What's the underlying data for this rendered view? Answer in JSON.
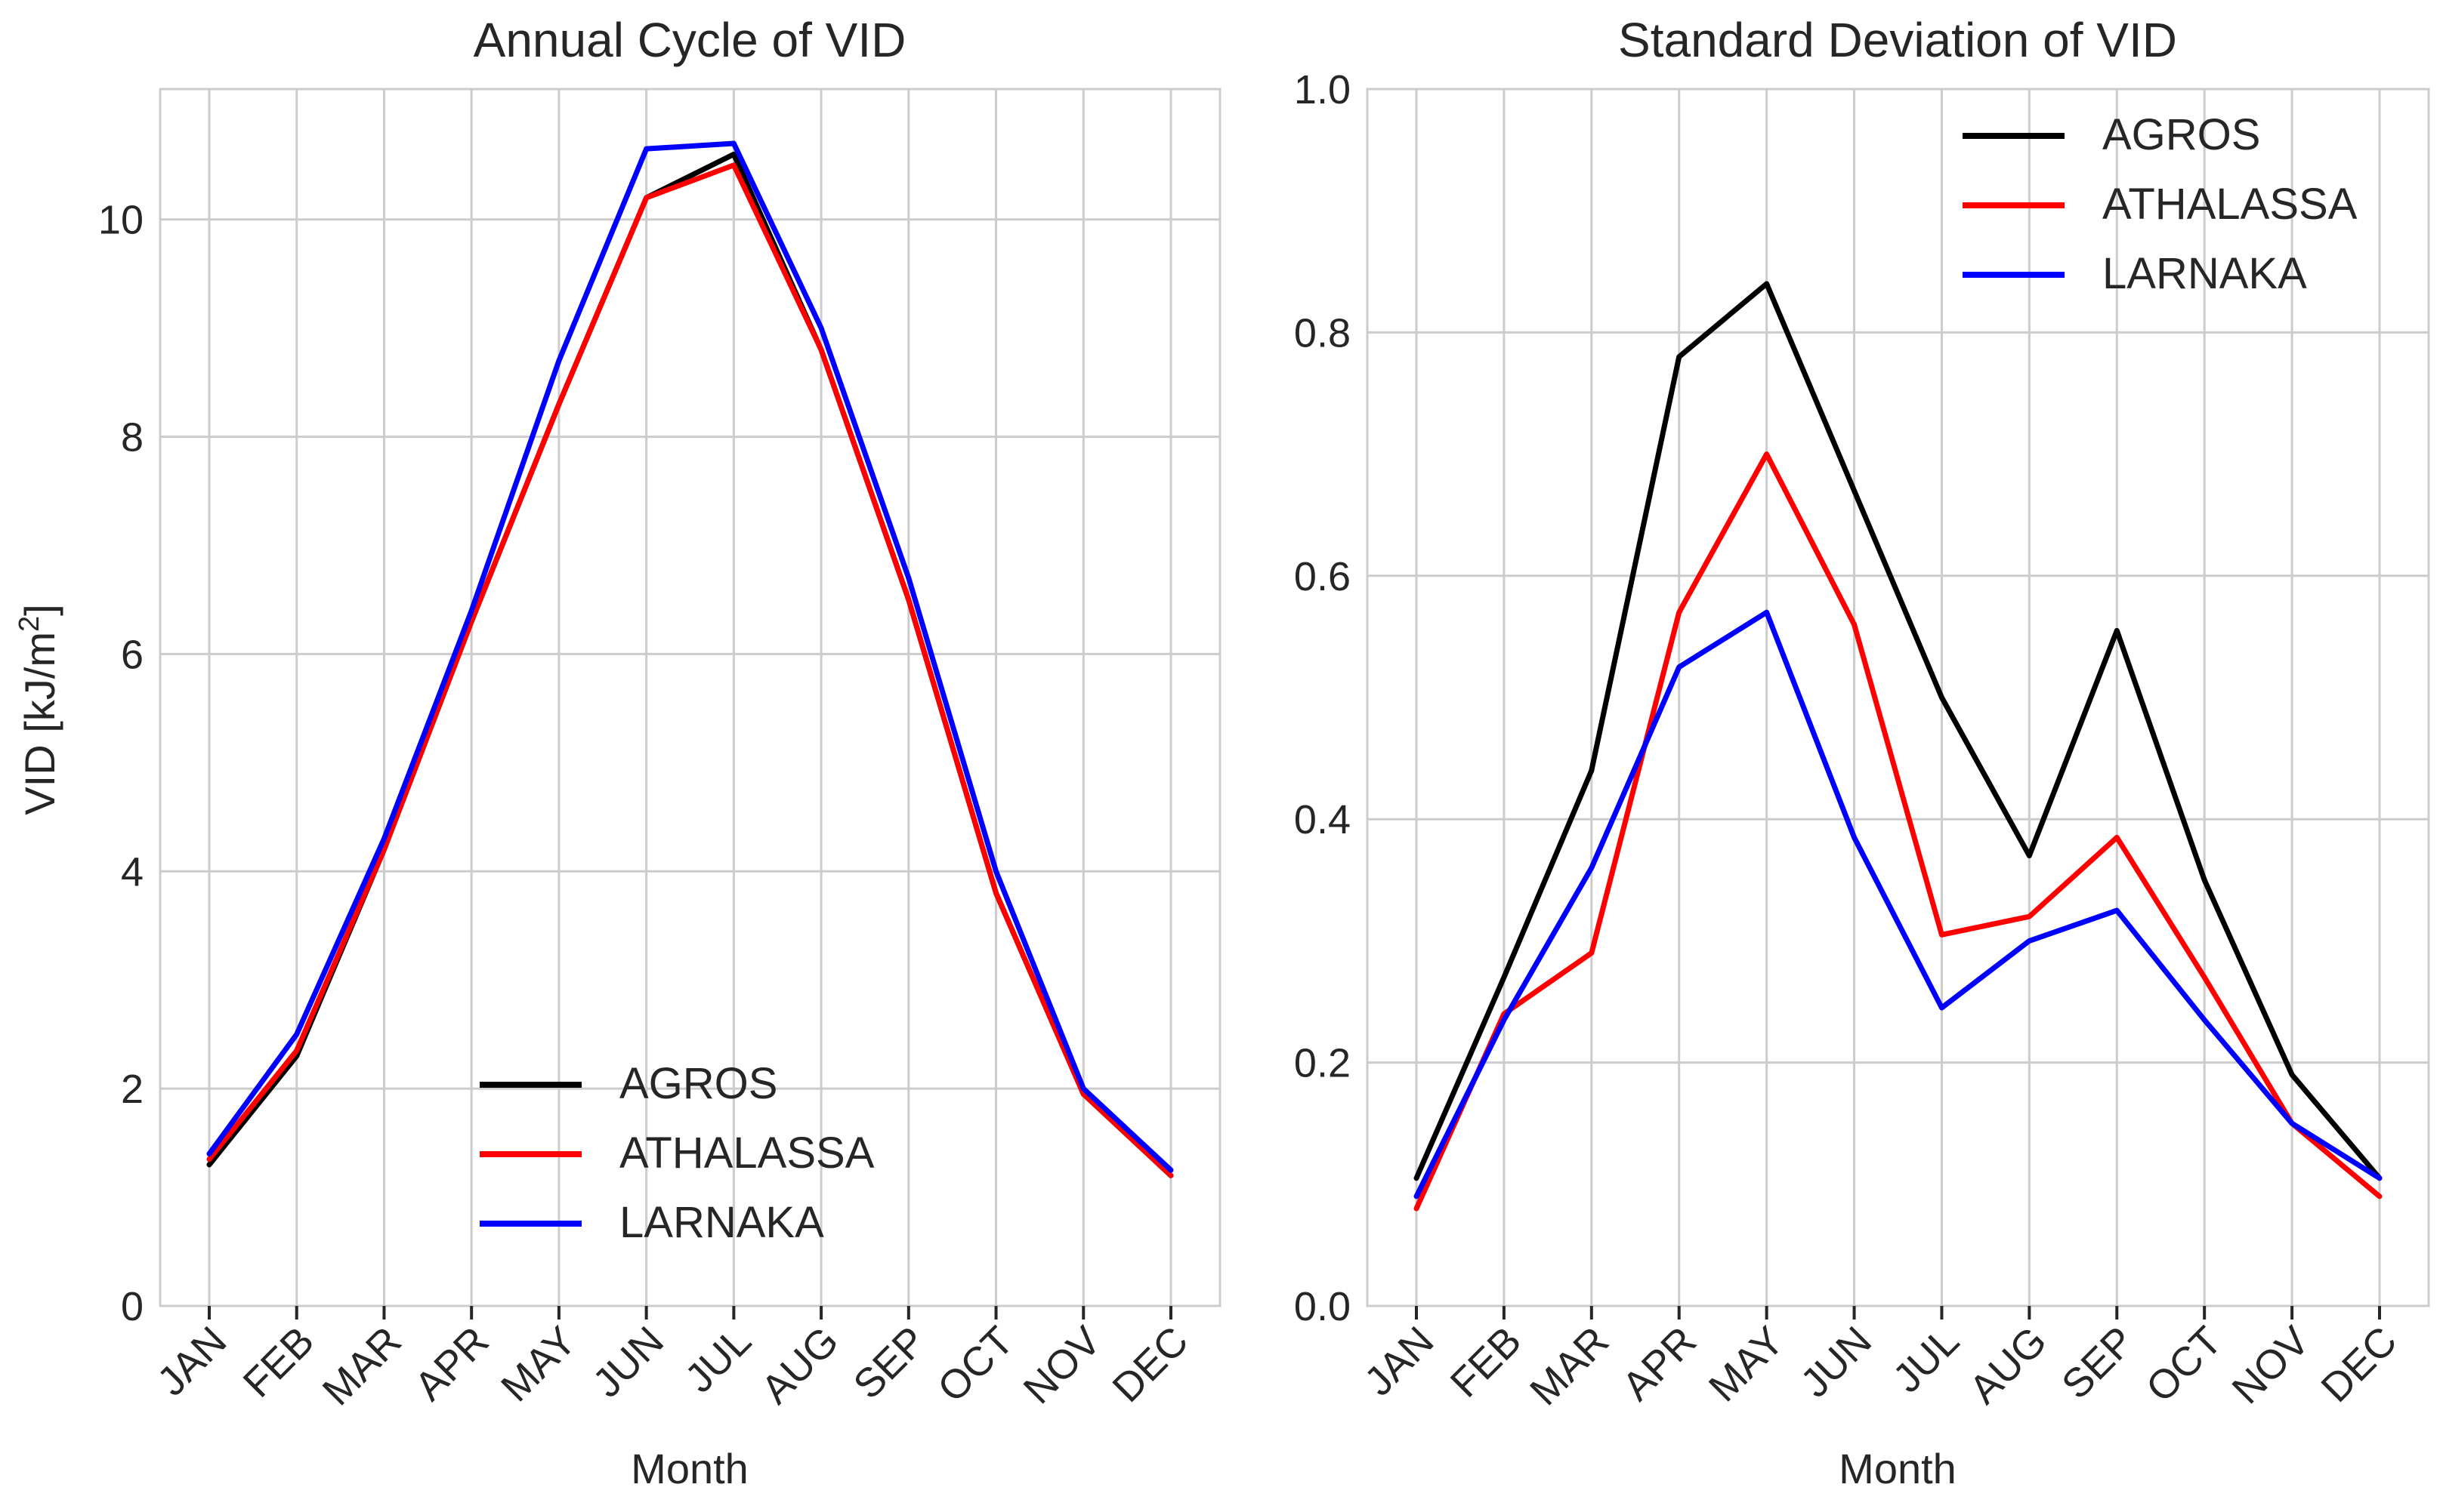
{
  "chart_data": [
    {
      "type": "line",
      "title": "Annual Cycle of VID",
      "xlabel": "Month",
      "ylabel": "VID [kJ/m",
      "ylabel_superscript": "2",
      "ylabel_suffix": "]",
      "categories": [
        "JAN",
        "FEB",
        "MAR",
        "APR",
        "MAY",
        "JUN",
        "JUL",
        "AUG",
        "SEP",
        "OCT",
        "NOV",
        "DEC"
      ],
      "ylim": [
        0,
        11.2
      ],
      "yticks": [
        0,
        2,
        4,
        6,
        8,
        10
      ],
      "grid": true,
      "legend_position": "bottom-center",
      "series": [
        {
          "name": "AGROS",
          "color": "#000000",
          "values": [
            1.3,
            2.3,
            4.2,
            6.3,
            8.3,
            10.2,
            10.6,
            8.8,
            6.5,
            3.8,
            1.95,
            1.2
          ]
        },
        {
          "name": "ATHALASSA",
          "color": "#ff0000",
          "values": [
            1.35,
            2.35,
            4.2,
            6.3,
            8.3,
            10.2,
            10.5,
            8.8,
            6.5,
            3.8,
            1.95,
            1.2
          ]
        },
        {
          "name": "LARNAKA",
          "color": "#0000ff",
          "values": [
            1.4,
            2.5,
            4.3,
            6.4,
            8.7,
            10.65,
            10.7,
            9.0,
            6.7,
            4.0,
            2.0,
            1.25
          ]
        }
      ]
    },
    {
      "type": "line",
      "title": "Standard Deviation of VID",
      "xlabel": "Month",
      "ylabel": "",
      "categories": [
        "JAN",
        "FEB",
        "MAR",
        "APR",
        "MAY",
        "JUN",
        "JUL",
        "AUG",
        "SEP",
        "OCT",
        "NOV",
        "DEC"
      ],
      "ylim": [
        0,
        1.0
      ],
      "yticks": [
        "0.0",
        "0.2",
        "0.4",
        "0.6",
        "0.8",
        "1.0"
      ],
      "grid": true,
      "legend_position": "top-right",
      "series": [
        {
          "name": "AGROS",
          "color": "#000000",
          "values": [
            0.105,
            0.27,
            0.44,
            0.78,
            0.84,
            0.67,
            0.5,
            0.37,
            0.555,
            0.35,
            0.19,
            0.105
          ]
        },
        {
          "name": "ATHALASSA",
          "color": "#ff0000",
          "values": [
            0.08,
            0.24,
            0.29,
            0.57,
            0.7,
            0.56,
            0.305,
            0.32,
            0.385,
            0.27,
            0.15,
            0.09
          ]
        },
        {
          "name": "LARNAKA",
          "color": "#0000ff",
          "values": [
            0.09,
            0.235,
            0.36,
            0.525,
            0.57,
            0.385,
            0.245,
            0.3,
            0.325,
            0.235,
            0.15,
            0.105
          ]
        }
      ]
    }
  ]
}
